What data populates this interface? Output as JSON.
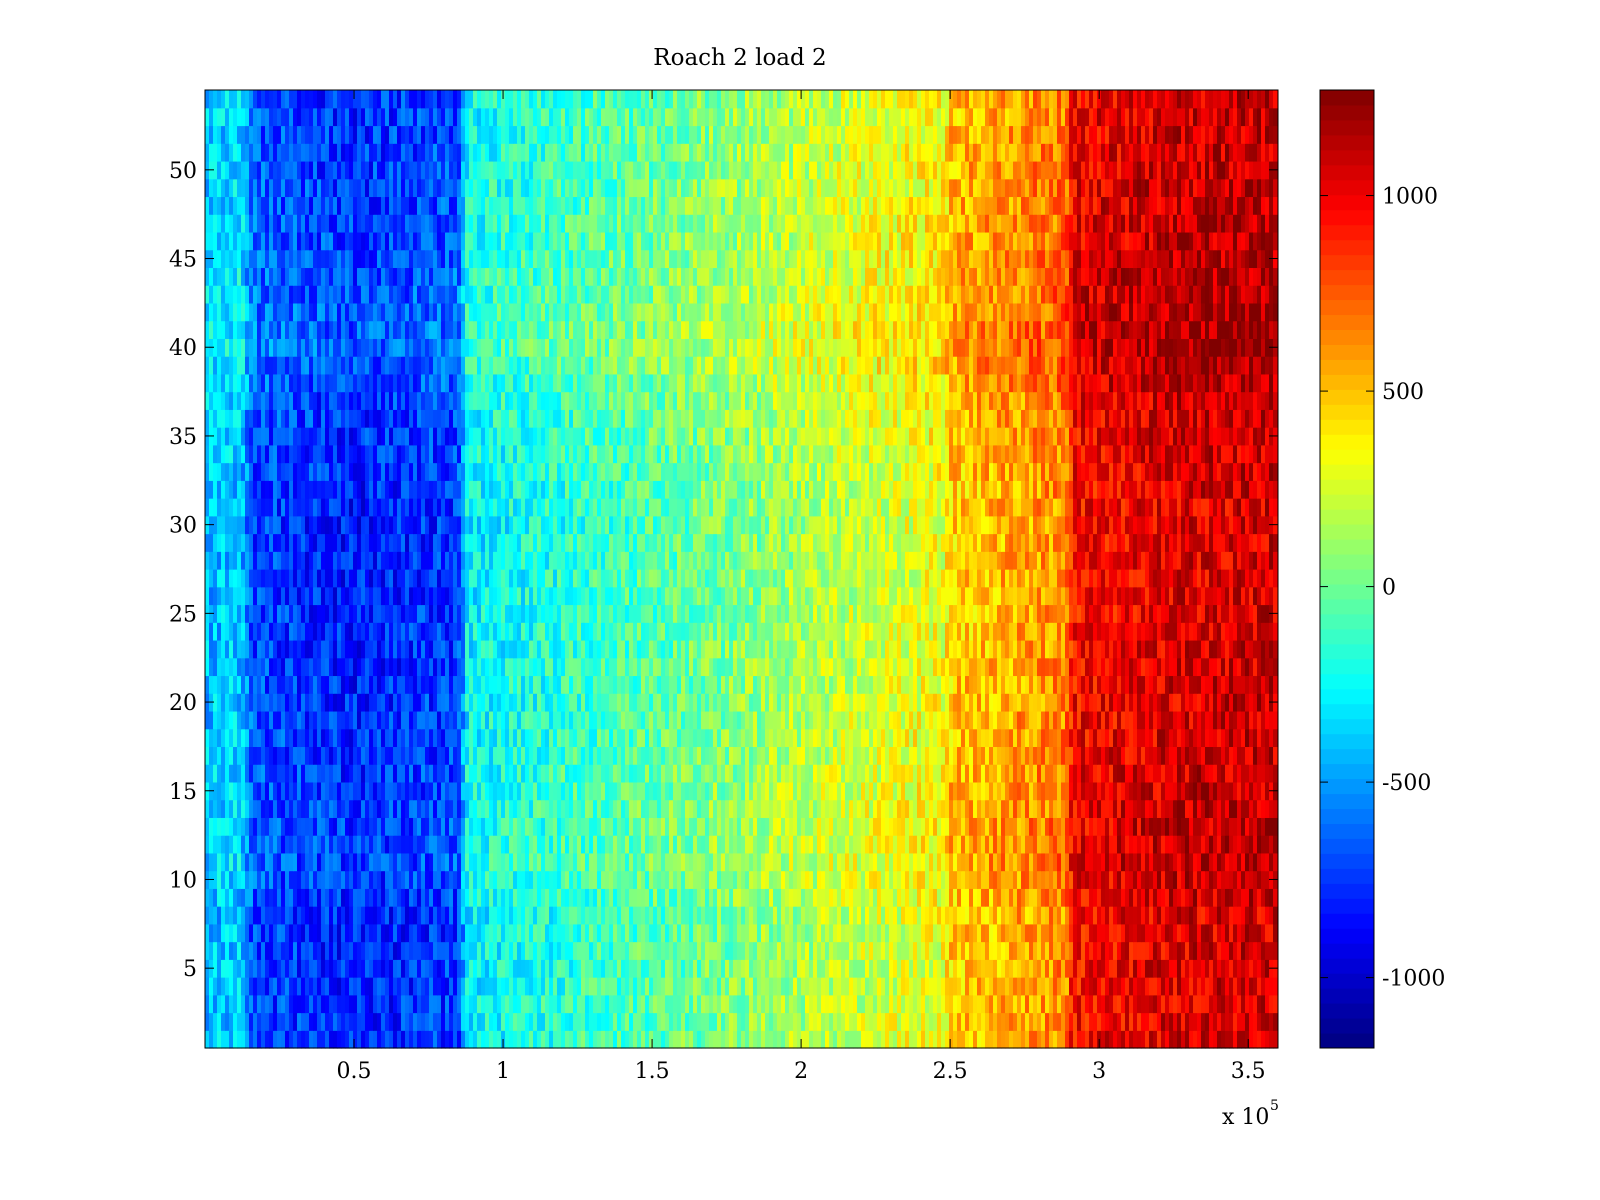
{
  "chart_data": {
    "type": "heatmap",
    "title": "Roach 2 load 2",
    "xlabel": "",
    "ylabel": "",
    "x_multiplier_label": "x 10",
    "x_multiplier_exponent": "5",
    "xlim": [
      0,
      360000
    ],
    "ylim": [
      0.5,
      54.5
    ],
    "x_ticks": [
      {
        "value": 50000,
        "label": "0.5"
      },
      {
        "value": 100000,
        "label": "1"
      },
      {
        "value": 150000,
        "label": "1.5"
      },
      {
        "value": 200000,
        "label": "2"
      },
      {
        "value": 250000,
        "label": "2.5"
      },
      {
        "value": 300000,
        "label": "3"
      },
      {
        "value": 350000,
        "label": "3.5"
      }
    ],
    "y_ticks": [
      {
        "value": 5,
        "label": "5"
      },
      {
        "value": 10,
        "label": "10"
      },
      {
        "value": 15,
        "label": "15"
      },
      {
        "value": 20,
        "label": "20"
      },
      {
        "value": 25,
        "label": "25"
      },
      {
        "value": 30,
        "label": "30"
      },
      {
        "value": 35,
        "label": "35"
      },
      {
        "value": 40,
        "label": "40"
      },
      {
        "value": 45,
        "label": "45"
      },
      {
        "value": 50,
        "label": "50"
      }
    ],
    "rows": 54,
    "colormap": "jet",
    "colorbar": {
      "limits": [
        -1180,
        1270
      ],
      "ticks": [
        {
          "value": -1000,
          "label": "-1000"
        },
        {
          "value": -500,
          "label": "-500"
        },
        {
          "value": 0,
          "label": "0"
        },
        {
          "value": 500,
          "label": "500"
        },
        {
          "value": 1000,
          "label": "1000"
        }
      ]
    },
    "column_profile": [
      {
        "x": 0,
        "value": -420
      },
      {
        "x": 12000,
        "value": -380
      },
      {
        "x": 16000,
        "value": -700
      },
      {
        "x": 50000,
        "value": -800
      },
      {
        "x": 85000,
        "value": -720
      },
      {
        "x": 88000,
        "value": -270
      },
      {
        "x": 130000,
        "value": -120
      },
      {
        "x": 170000,
        "value": 30
      },
      {
        "x": 210000,
        "value": 190
      },
      {
        "x": 248000,
        "value": 330
      },
      {
        "x": 250000,
        "value": 470
      },
      {
        "x": 289000,
        "value": 640
      },
      {
        "x": 291000,
        "value": 960
      },
      {
        "x": 330000,
        "value": 1060
      },
      {
        "x": 360000,
        "value": 1080
      }
    ],
    "row_offsets": [
      {
        "y": 1,
        "value": 0
      },
      {
        "y": 8,
        "value": -20
      },
      {
        "y": 11,
        "value": 60
      },
      {
        "y": 20,
        "value": 0
      },
      {
        "y": 30,
        "value": -30
      },
      {
        "y": 37,
        "value": 40
      },
      {
        "y": 40,
        "value": 140
      },
      {
        "y": 45,
        "value": 70
      },
      {
        "y": 54,
        "value": 20
      }
    ],
    "noise_amplitude": 200
  }
}
